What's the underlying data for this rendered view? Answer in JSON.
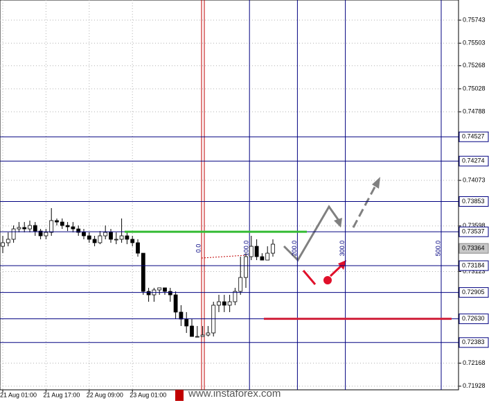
{
  "chart_data": {
    "type": "candlestick",
    "categories": [
      "21 Aug 01:00",
      null,
      null,
      null,
      null,
      null,
      null,
      null,
      "21 Aug 17:00",
      null,
      null,
      null,
      null,
      null,
      null,
      null,
      "22 Aug 09:00",
      null,
      null,
      null,
      null,
      null,
      null,
      null,
      "23 Aug 01:00",
      null,
      null,
      null,
      null,
      null,
      null,
      null,
      null,
      null,
      null,
      null,
      null,
      null,
      null,
      null,
      null,
      null,
      null,
      null,
      null,
      null,
      null,
      null,
      null,
      null,
      null
    ],
    "open": [
      0.73386,
      0.73423,
      0.73459,
      0.73567,
      0.73582,
      0.73567,
      0.73603,
      0.73545,
      0.73495,
      0.73531,
      0.73654,
      0.73639,
      0.73603,
      0.73589,
      0.73567,
      0.73531,
      0.73495,
      0.73459,
      0.73423,
      0.73495,
      0.73531,
      0.73459,
      0.73459,
      0.73495,
      0.73459,
      0.73423,
      0.73314,
      0.72916,
      0.7288,
      0.72931,
      0.72953,
      0.72916,
      0.7288,
      0.727,
      0.72627,
      0.72555,
      0.72446,
      0.72446,
      0.72461,
      0.72483,
      0.72772,
      0.72808,
      0.72772,
      0.72808,
      0.72916,
      0.73061,
      0.73278,
      0.73386,
      0.73278,
      0.73242,
      0.73314
    ],
    "high": [
      0.73495,
      0.73531,
      0.73603,
      0.73639,
      0.73639,
      0.73654,
      0.73639,
      0.73567,
      0.73567,
      0.73784,
      0.73676,
      0.73676,
      0.73639,
      0.73639,
      0.73603,
      0.73567,
      0.73531,
      0.73495,
      0.73545,
      0.73603,
      0.73567,
      0.73531,
      0.73676,
      0.73531,
      0.73495,
      0.73459,
      0.73314,
      0.72953,
      0.72953,
      0.72953,
      0.72953,
      0.72953,
      0.72916,
      0.72772,
      0.727,
      0.72627,
      0.72555,
      0.72555,
      0.72555,
      0.72808,
      0.7288,
      0.7288,
      0.7288,
      0.72953,
      0.73278,
      0.73314,
      0.73495,
      0.73459,
      0.73314,
      0.73386,
      0.73459
    ],
    "low": [
      0.73314,
      0.73386,
      0.73423,
      0.73531,
      0.73531,
      0.73531,
      0.73495,
      0.73459,
      0.73459,
      0.73495,
      0.73603,
      0.73567,
      0.73545,
      0.73531,
      0.73495,
      0.73459,
      0.73423,
      0.73386,
      0.73408,
      0.73459,
      0.73423,
      0.73408,
      0.73423,
      0.73408,
      0.73386,
      0.73278,
      0.7288,
      0.72808,
      0.72808,
      0.7288,
      0.7288,
      0.72808,
      0.72627,
      0.72555,
      0.72483,
      0.72446,
      0.72446,
      0.72446,
      0.72446,
      0.72446,
      0.727,
      0.727,
      0.727,
      0.72772,
      0.7288,
      0.72953,
      0.73242,
      0.73242,
      0.73242,
      0.73242,
      0.73278
    ],
    "close": [
      0.73423,
      0.73459,
      0.73567,
      0.73582,
      0.73567,
      0.73603,
      0.73545,
      0.73495,
      0.73531,
      0.73654,
      0.73639,
      0.73603,
      0.73589,
      0.73567,
      0.73531,
      0.73495,
      0.73459,
      0.73423,
      0.73495,
      0.73531,
      0.73459,
      0.73459,
      0.73495,
      0.73459,
      0.73423,
      0.73314,
      0.72916,
      0.7288,
      0.72931,
      0.72953,
      0.72916,
      0.7288,
      0.727,
      0.72627,
      0.72555,
      0.72446,
      0.72446,
      0.72461,
      0.72483,
      0.72772,
      0.72808,
      0.72772,
      0.72808,
      0.72916,
      0.73061,
      0.73278,
      0.73386,
      0.73278,
      0.73242,
      0.73314,
      0.73408
    ],
    "up_color": "#ffffff",
    "down_color": "#000000",
    "ylim": [
      0.7189,
      0.75953
    ],
    "yticks": [
      0.75743,
      0.75503,
      0.75268,
      0.75028,
      0.74788,
      0.74073,
      0.73598,
      0.73123,
      0.72168,
      0.71928
    ],
    "grid": true,
    "levels": [
      0.74527,
      0.74274,
      0.73853,
      0.73537,
      0.73184,
      0.72905,
      {
        "value": 0.7263,
        "label": "0.72630"
      },
      0.72383
    ],
    "level_color": "#000080",
    "last_price": 0.73364,
    "fib_time": [
      {
        "value": 0,
        "label": "0.0"
      },
      {
        "value": 100,
        "label": "100.0"
      },
      {
        "value": 200,
        "label": "200.0"
      },
      {
        "value": 300,
        "label": "300.0"
      },
      {
        "value": 500,
        "label": "500.0"
      }
    ],
    "watermark": "www.instaforex.com"
  }
}
